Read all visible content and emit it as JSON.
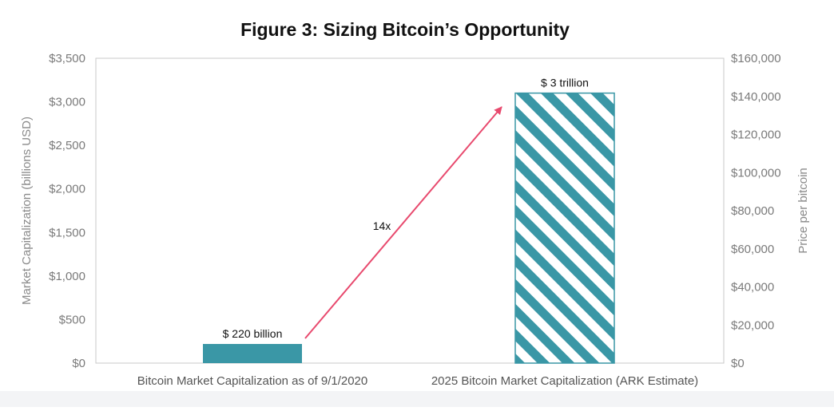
{
  "chart_data": {
    "type": "bar",
    "title": "Figure 3: Sizing Bitcoin’s Opportunity",
    "categories": [
      "Bitcoin Market Capitalization as of 9/1/2020",
      "2025 Bitcoin Market Capitalization (ARK Estimate)"
    ],
    "values": [
      220,
      3100
    ],
    "data_labels": [
      "$ 220 billion",
      "$ 3 trillion"
    ],
    "ylabel": "Market Capitalization (billions USD)",
    "y2label": "Price per bitcoin",
    "ylim": [
      0,
      3500
    ],
    "y2lim": [
      0,
      160000
    ],
    "yticks": [
      "$0",
      "$500",
      "$1,000",
      "$1,500",
      "$2,000",
      "$2,500",
      "$3,000",
      "$3,500"
    ],
    "y2ticks": [
      "$0",
      "$20,000",
      "$40,000",
      "$60,000",
      "$80,000",
      "$100,000",
      "$120,000",
      "$140,000",
      "$160,000"
    ],
    "annotation": "14x",
    "grid": false,
    "colors": {
      "bar": "#3a97a6",
      "stripe": "#3a97a6",
      "arrow": "#e84a6e",
      "axis": "#c8c8c8"
    },
    "bar_styles": [
      "solid",
      "hatched"
    ]
  }
}
